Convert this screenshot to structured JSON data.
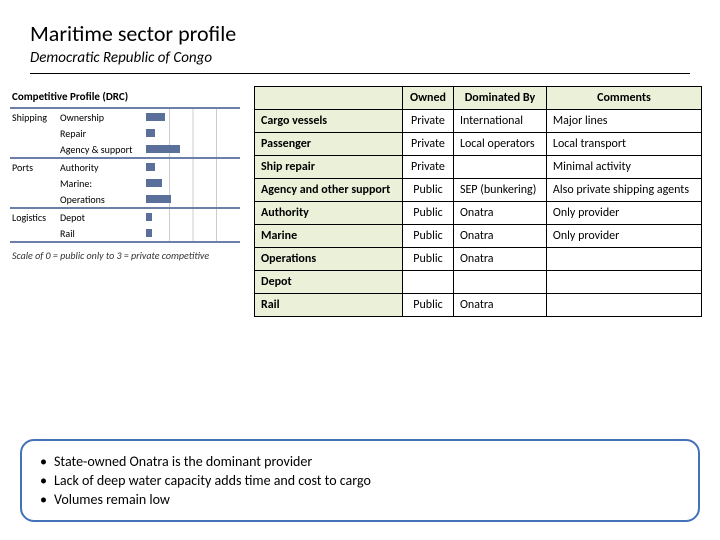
{
  "colors": {
    "header_bg": "#ebf0d9",
    "border": "#000000",
    "mini_divider": "#6b7fa8",
    "bar_color": "#5a6f9a",
    "callout_border": "#4571b8"
  },
  "title": "Maritime sector profile",
  "subtitle": "Democratic Republic of Congo",
  "mini_chart": {
    "title": "Competitive Profile (DRC)",
    "scale_note": "Scale of 0 = public  only to 3 = private competitive",
    "max": 3,
    "groups": [
      {
        "label": "Shipping",
        "rows": [
          {
            "label": "Ownership",
            "value": 0.6
          },
          {
            "label": "Repair",
            "value": 0.3
          },
          {
            "label": "Agency & support",
            "value": 1.1
          }
        ]
      },
      {
        "label": "Ports",
        "rows": [
          {
            "label": "Authority",
            "value": 0.3
          },
          {
            "label": "Marine:",
            "value": 0.5
          },
          {
            "label": "Operations",
            "value": 0.8
          }
        ]
      },
      {
        "label": "Logistics",
        "rows": [
          {
            "label": "Depot",
            "value": 0.2
          },
          {
            "label": "Rail",
            "value": 0.2
          }
        ]
      }
    ]
  },
  "table": {
    "headers": [
      "",
      "Owned",
      "Dominated By",
      "Comments"
    ],
    "rows": [
      {
        "cat": "Cargo vessels",
        "owned": "Private",
        "dom": "International",
        "comm": "Major lines"
      },
      {
        "cat": "Passenger",
        "owned": "Private",
        "dom": "Local operators",
        "comm": "Local transport"
      },
      {
        "cat": "Ship repair",
        "owned": "Private",
        "dom": "",
        "comm": "Minimal activity"
      },
      {
        "cat": "Agency and other support",
        "owned": "Public",
        "dom": "SEP (bunkering)",
        "comm": "Also private shipping agents"
      },
      {
        "cat": "Authority",
        "owned": "Public",
        "dom": "Onatra",
        "comm": "Only provider"
      },
      {
        "cat": "Marine",
        "owned": "Public",
        "dom": "Onatra",
        "comm": "Only provider"
      },
      {
        "cat": "Operations",
        "owned": "Public",
        "dom": "Onatra",
        "comm": ""
      },
      {
        "cat": "Depot",
        "owned": "",
        "dom": "",
        "comm": ""
      },
      {
        "cat": "Rail",
        "owned": "Public",
        "dom": "Onatra",
        "comm": ""
      }
    ]
  },
  "bullets": [
    "State-owned Onatra is the dominant provider",
    "Lack of deep water capacity adds time and cost to cargo",
    "Volumes remain low"
  ]
}
